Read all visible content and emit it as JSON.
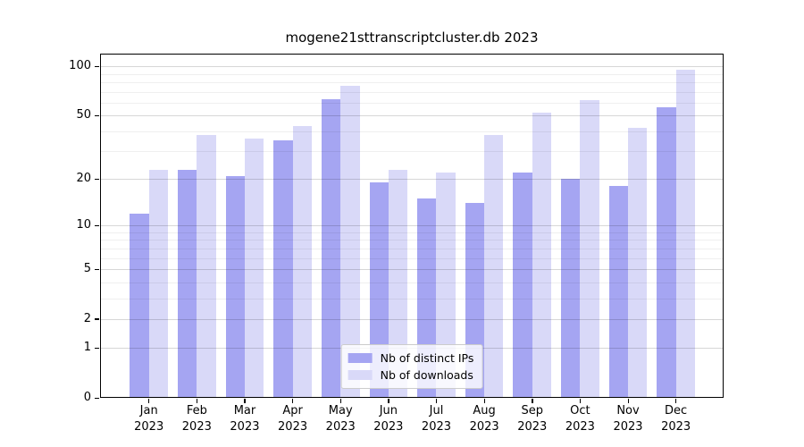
{
  "chart_data": {
    "type": "bar",
    "title": "mogene21sttranscriptcluster.db 2023",
    "categories": [
      "Jan 2023",
      "Feb 2023",
      "Mar 2023",
      "Apr 2023",
      "May 2023",
      "Jun 2023",
      "Jul 2023",
      "Aug 2023",
      "Sep 2023",
      "Oct 2023",
      "Nov 2023",
      "Dec 2023"
    ],
    "series": [
      {
        "name": "Nb of distinct IPs",
        "color": "#a5a5f2",
        "values": [
          12,
          23,
          21,
          35,
          63,
          19,
          15,
          14,
          22,
          20,
          18,
          56
        ]
      },
      {
        "name": "Nb of downloads",
        "color": "#d9d9f8",
        "values": [
          23,
          38,
          36,
          43,
          76,
          23,
          22,
          38,
          52,
          62,
          42,
          95
        ]
      }
    ],
    "xlabel": "",
    "ylabel": "",
    "yscale": "log1p",
    "ylim": [
      0,
      120
    ],
    "y_ticks_major": [
      0,
      1,
      2,
      5,
      10,
      20,
      50,
      100
    ],
    "y_ticks_minor": [
      3,
      4,
      6,
      7,
      8,
      9,
      30,
      40,
      60,
      70,
      80,
      90
    ],
    "grid": "on",
    "legend_position": "lower center"
  }
}
